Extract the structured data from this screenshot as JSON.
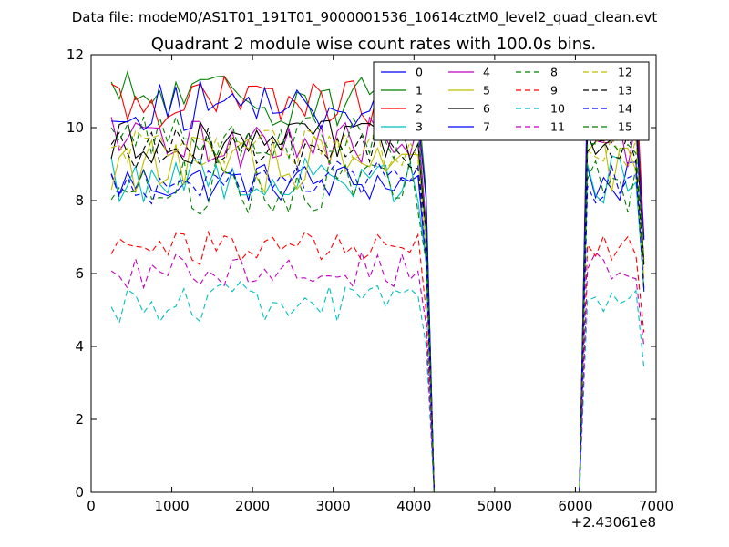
{
  "suptitle": "Data file: modeM0/AS1T01_191T01_9000001536_10614cztM0_level2_quad_clean.evt",
  "chart_data": {
    "type": "line",
    "title": "Quadrant 2 module wise count rates with 100.0s bins.",
    "xlabel": "",
    "ylabel": "",
    "xlim": [
      0,
      7000
    ],
    "ylim": [
      0,
      12
    ],
    "x_ticks": [
      0,
      1000,
      2000,
      3000,
      4000,
      5000,
      6000,
      7000
    ],
    "y_ticks": [
      0,
      2,
      4,
      6,
      8,
      10,
      12
    ],
    "x_offset_label": "+2.43061e8",
    "grid": false,
    "legend": {
      "placement": "top-right",
      "columns": 4
    },
    "x": [
      250,
      350,
      450,
      550,
      650,
      750,
      850,
      950,
      1050,
      1150,
      1250,
      1350,
      1450,
      1550,
      1650,
      1750,
      1850,
      1950,
      2050,
      2150,
      2250,
      2350,
      2450,
      2550,
      2650,
      2750,
      2850,
      2950,
      3050,
      3150,
      3250,
      3350,
      3450,
      3550,
      3650,
      3750,
      3850,
      3950,
      4050,
      4150,
      4250,
      6050,
      6150,
      6250,
      6350,
      6450,
      6550,
      6650,
      6750,
      6850
    ],
    "series": [
      {
        "name": "0",
        "color": "#0000ff",
        "dash": "solid",
        "base": 8.5,
        "amp": 0.28
      },
      {
        "name": "1",
        "color": "#008000",
        "dash": "solid",
        "base": 10.8,
        "amp": 0.4
      },
      {
        "name": "2",
        "color": "#ff0000",
        "dash": "solid",
        "base": 10.7,
        "amp": 0.35
      },
      {
        "name": "3",
        "color": "#00bfbf",
        "dash": "solid",
        "base": 8.6,
        "amp": 0.35
      },
      {
        "name": "4",
        "color": "#bf00bf",
        "dash": "solid",
        "base": 9.6,
        "amp": 0.35
      },
      {
        "name": "5",
        "color": "#bfbf00",
        "dash": "solid",
        "base": 9.0,
        "amp": 0.4
      },
      {
        "name": "6",
        "color": "#000000",
        "dash": "solid",
        "base": 9.6,
        "amp": 0.3
      },
      {
        "name": "7",
        "color": "#0000ff",
        "dash": "solid",
        "base": 10.6,
        "amp": 0.35
      },
      {
        "name": "8",
        "color": "#008000",
        "dash": "dashed",
        "base": 8.4,
        "amp": 0.4
      },
      {
        "name": "9",
        "color": "#ff0000",
        "dash": "dashed",
        "base": 6.7,
        "amp": 0.25
      },
      {
        "name": "10",
        "color": "#00bfbf",
        "dash": "dashed",
        "base": 5.2,
        "amp": 0.3
      },
      {
        "name": "11",
        "color": "#bf00bf",
        "dash": "dashed",
        "base": 6.1,
        "amp": 0.25
      },
      {
        "name": "12",
        "color": "#bfbf00",
        "dash": "dashed",
        "base": 9.4,
        "amp": 0.3
      },
      {
        "name": "13",
        "color": "#000000",
        "dash": "dashed",
        "base": 9.4,
        "amp": 0.3
      },
      {
        "name": "14",
        "color": "#0000ff",
        "dash": "dashed",
        "base": 8.5,
        "amp": 0.3
      },
      {
        "name": "15",
        "color": "#008000",
        "dash": "dashed",
        "base": 9.7,
        "amp": 0.3
      }
    ]
  }
}
